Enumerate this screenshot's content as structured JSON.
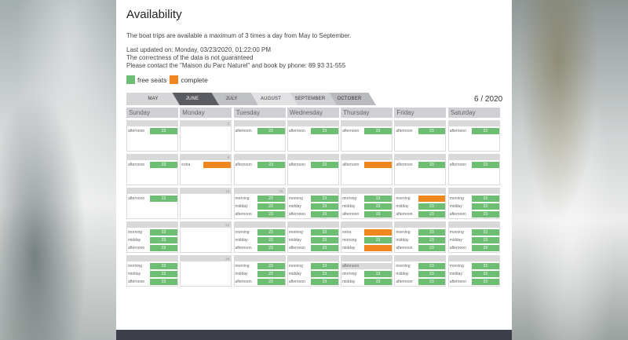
{
  "title": "Availability",
  "intro": "The boat trips are available a maximum of 3 times a day from May to September.",
  "info": [
    "Last updated on: Monday, 03/23/2020, 01:22:00 PM",
    "The correctness of the data is not guaranteed",
    "Please contact the \"Maison du Parc Naturel\" and book by phone: 89 93 31-555"
  ],
  "legend": {
    "free_label": "free seats",
    "complete_label": "complete",
    "free_color": "#6dbd72",
    "complete_color": "#f0861e"
  },
  "tabs": [
    {
      "label": "MAY",
      "active": false
    },
    {
      "label": "JUNE",
      "active": true
    },
    {
      "label": "JULY",
      "active": false
    },
    {
      "label": "AUGUST",
      "active": false
    },
    {
      "label": "SEPTEMBER",
      "active": false
    },
    {
      "label": "OCTOBER",
      "active": false
    }
  ],
  "month_label": "6 / 2020",
  "weekdays": [
    "Sunday",
    "Monday",
    "Tuesday",
    "Wednesday",
    "Thursday",
    "Friday",
    "Saturday"
  ],
  "weeks": [
    [
      {
        "num": "",
        "slots": [
          {
            "label": "afternoon",
            "status": "free",
            "value": "23"
          }
        ]
      },
      {
        "num": "1",
        "slots": []
      },
      {
        "num": "",
        "slots": [
          {
            "label": "afternoon",
            "status": "free",
            "value": "23"
          }
        ]
      },
      {
        "num": "",
        "slots": [
          {
            "label": "afternoon",
            "status": "free",
            "value": "23"
          }
        ]
      },
      {
        "num": "",
        "slots": [
          {
            "label": "afternoon",
            "status": "free",
            "value": "23"
          }
        ]
      },
      {
        "num": "",
        "slots": [
          {
            "label": "afternoon",
            "status": "free",
            "value": "23"
          }
        ]
      },
      {
        "num": "",
        "slots": [
          {
            "label": "afternoon",
            "status": "free",
            "value": "23"
          }
        ]
      }
    ],
    [
      {
        "num": "",
        "slots": [
          {
            "label": "afternoon",
            "status": "free",
            "value": "23"
          }
        ]
      },
      {
        "num": "8",
        "slots": [
          {
            "label": "extra",
            "status": "complete",
            "value": ""
          }
        ]
      },
      {
        "num": "",
        "slots": [
          {
            "label": "afternoon",
            "status": "free",
            "value": "23"
          }
        ]
      },
      {
        "num": "",
        "slots": [
          {
            "label": "afternoon",
            "status": "free",
            "value": "23"
          }
        ]
      },
      {
        "num": "",
        "slots": [
          {
            "label": "afternoon",
            "status": "complete",
            "value": ""
          }
        ]
      },
      {
        "num": "",
        "slots": [
          {
            "label": "afternoon",
            "status": "free",
            "value": "23"
          }
        ]
      },
      {
        "num": "",
        "slots": [
          {
            "label": "afternoon",
            "status": "free",
            "value": "23"
          }
        ]
      }
    ],
    [
      {
        "num": "",
        "slots": [
          {
            "label": "afternoon",
            "status": "free",
            "value": "23"
          }
        ]
      },
      {
        "num": "15",
        "slots": []
      },
      {
        "num": "16",
        "slots": [
          {
            "label": "morning",
            "status": "free",
            "value": "23"
          },
          {
            "label": "midday",
            "status": "free",
            "value": "23"
          },
          {
            "label": "afternoon",
            "status": "free",
            "value": "23"
          }
        ]
      },
      {
        "num": "",
        "slots": [
          {
            "label": "morning",
            "status": "free",
            "value": "23"
          },
          {
            "label": "midday",
            "status": "free",
            "value": "23"
          },
          {
            "label": "afternoon",
            "status": "free",
            "value": "23"
          }
        ]
      },
      {
        "num": "",
        "slots": [
          {
            "label": "morning",
            "status": "free",
            "value": "23"
          },
          {
            "label": "midday",
            "status": "free",
            "value": "23"
          },
          {
            "label": "afternoon",
            "status": "free",
            "value": "23"
          }
        ]
      },
      {
        "num": "",
        "slots": [
          {
            "label": "morning",
            "status": "complete",
            "value": ""
          },
          {
            "label": "midday",
            "status": "free",
            "value": "23"
          },
          {
            "label": "afternoon",
            "status": "free",
            "value": "23"
          }
        ]
      },
      {
        "num": "",
        "slots": [
          {
            "label": "morning",
            "status": "free",
            "value": "23"
          },
          {
            "label": "midday",
            "status": "free",
            "value": "23"
          },
          {
            "label": "afternoon",
            "status": "free",
            "value": "23"
          }
        ]
      }
    ],
    [
      {
        "num": "",
        "slots": [
          {
            "label": "morning",
            "status": "free",
            "value": "23"
          },
          {
            "label": "midday",
            "status": "free",
            "value": "23"
          },
          {
            "label": "afternoon",
            "status": "free",
            "value": "23"
          }
        ]
      },
      {
        "num": "22",
        "slots": []
      },
      {
        "num": "",
        "slots": [
          {
            "label": "morning",
            "status": "free",
            "value": "23"
          },
          {
            "label": "midday",
            "status": "free",
            "value": "23"
          },
          {
            "label": "afternoon",
            "status": "free",
            "value": "23"
          }
        ]
      },
      {
        "num": "",
        "slots": [
          {
            "label": "morning",
            "status": "free",
            "value": "23"
          },
          {
            "label": "midday",
            "status": "free",
            "value": "23"
          },
          {
            "label": "afternoon",
            "status": "free",
            "value": "23"
          }
        ]
      },
      {
        "num": "",
        "slots": [
          {
            "label": "extra",
            "status": "complete",
            "value": ""
          },
          {
            "label": "morning",
            "status": "free",
            "value": "23"
          },
          {
            "label": "midday",
            "status": "complete",
            "value": ""
          }
        ]
      },
      {
        "num": "",
        "slots": [
          {
            "label": "morning",
            "status": "free",
            "value": "23"
          },
          {
            "label": "midday",
            "status": "free",
            "value": "23"
          },
          {
            "label": "afternoon",
            "status": "free",
            "value": "23"
          }
        ]
      },
      {
        "num": "",
        "slots": [
          {
            "label": "morning",
            "status": "free",
            "value": "23"
          },
          {
            "label": "midday",
            "status": "free",
            "value": "23"
          },
          {
            "label": "afternoon",
            "status": "free",
            "value": "23"
          }
        ]
      }
    ],
    [
      {
        "num": "",
        "slots": [
          {
            "label": "morning",
            "status": "free",
            "value": "23"
          },
          {
            "label": "midday",
            "status": "free",
            "value": "23"
          },
          {
            "label": "afternoon",
            "status": "free",
            "value": "23"
          }
        ]
      },
      {
        "num": "29",
        "slots": []
      },
      {
        "num": "",
        "slots": [
          {
            "label": "morning",
            "status": "free",
            "value": "23"
          },
          {
            "label": "midday",
            "status": "free",
            "value": "23"
          },
          {
            "label": "afternoon",
            "status": "free",
            "value": "23"
          }
        ]
      },
      {
        "num": "",
        "slots": [
          {
            "label": "morning",
            "status": "free",
            "value": "23"
          },
          {
            "label": "midday",
            "status": "free",
            "value": "23"
          },
          {
            "label": "afternoon",
            "status": "free",
            "value": "23"
          }
        ]
      },
      {
        "num": "",
        "slots": [
          {
            "label": "afternoon",
            "status": "head",
            "value": ""
          },
          {
            "label": "morning",
            "status": "free",
            "value": "23"
          },
          {
            "label": "midday",
            "status": "free",
            "value": "23"
          }
        ]
      },
      {
        "num": "",
        "slots": [
          {
            "label": "morning",
            "status": "free",
            "value": "23"
          },
          {
            "label": "midday",
            "status": "free",
            "value": "23"
          },
          {
            "label": "afternoon",
            "status": "free",
            "value": "23"
          }
        ]
      },
      {
        "num": "",
        "slots": [
          {
            "label": "morning",
            "status": "free",
            "value": "23"
          },
          {
            "label": "midday",
            "status": "free",
            "value": "23"
          },
          {
            "label": "afternoon",
            "status": "free",
            "value": "23"
          }
        ]
      }
    ]
  ]
}
